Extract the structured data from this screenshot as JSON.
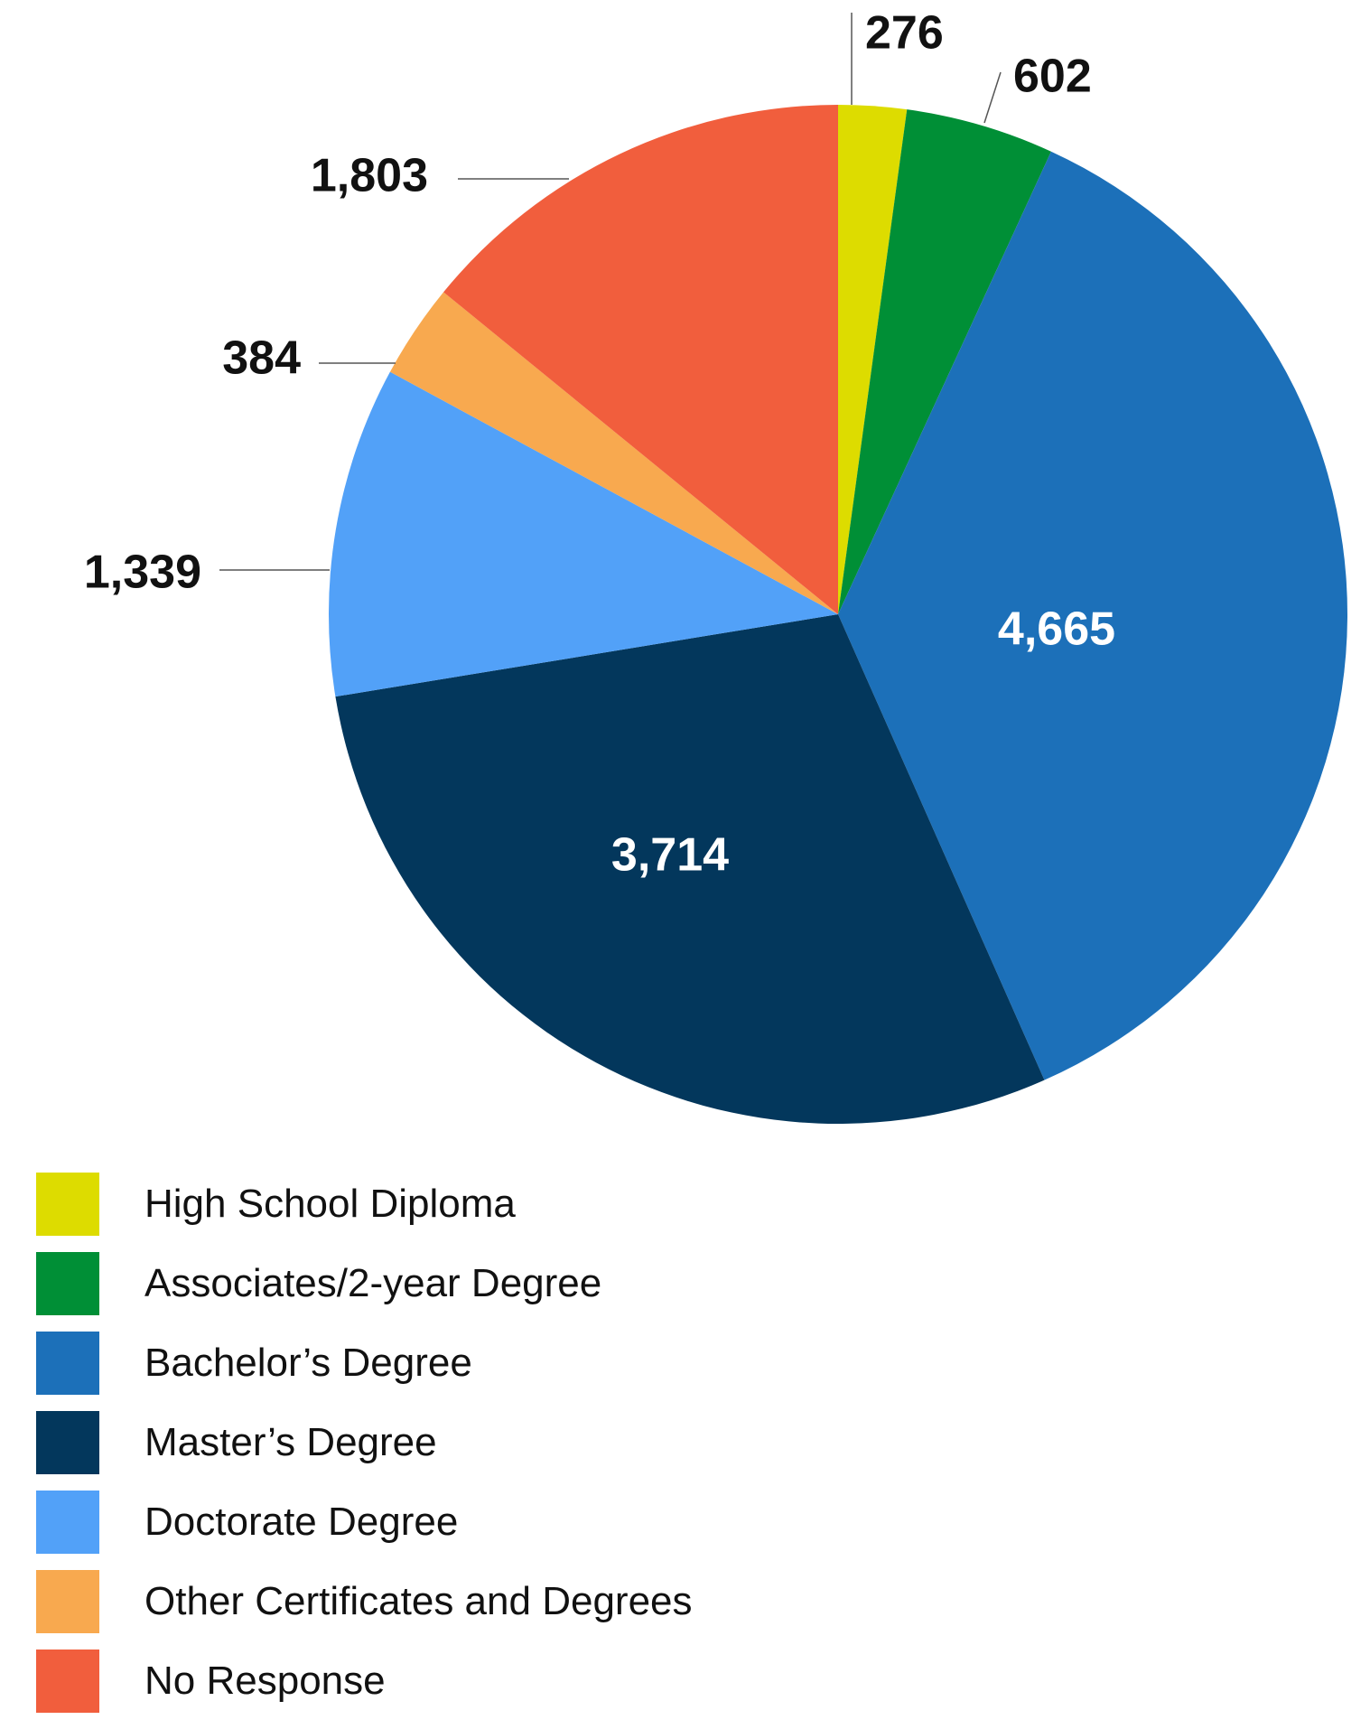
{
  "chart_data": {
    "type": "pie",
    "title": "",
    "slices": [
      {
        "name": "High School Diploma",
        "value": 276,
        "label": "276",
        "color": "#dddc00",
        "label_color": "#111111",
        "label_placement": "outside"
      },
      {
        "name": "Associates/2-year Degree",
        "value": 602,
        "label": "602",
        "color": "#008f36",
        "label_color": "#111111",
        "label_placement": "outside"
      },
      {
        "name": "Bachelor’s Degree",
        "value": 4665,
        "label": "4,665",
        "color": "#1c70b9",
        "label_color": "#ffffff",
        "label_placement": "inside"
      },
      {
        "name": "Master’s Degree",
        "value": 3714,
        "label": "3,714",
        "color": "#03375c",
        "label_color": "#ffffff",
        "label_placement": "inside"
      },
      {
        "name": "Doctorate Degree",
        "value": 1339,
        "label": "1,339",
        "color": "#52a1f8",
        "label_color": "#111111",
        "label_placement": "outside"
      },
      {
        "name": "Other Certificates and Degrees",
        "value": 384,
        "label": "384",
        "color": "#f8a94f",
        "label_color": "#111111",
        "label_placement": "outside"
      },
      {
        "name": "No Response",
        "value": 1803,
        "label": "1,803",
        "color": "#f15e3d",
        "label_color": "#111111",
        "label_placement": "outside"
      }
    ],
    "start_angle": "top",
    "direction": "clockwise",
    "legend_placement": "bottom-left"
  }
}
